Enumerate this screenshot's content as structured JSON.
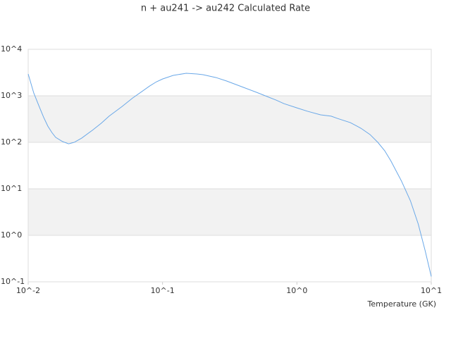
{
  "chart_data": {
    "type": "line",
    "title": "n + au241 -> au242 Calculated Rate",
    "x_label": "Temperature (GK)",
    "log_x": true,
    "log_y": true,
    "grid": true,
    "bands": true,
    "xlim": [
      0.01,
      10
    ],
    "ylim": [
      0.1,
      10000
    ],
    "xticks": [
      {
        "value": 0.01,
        "label": "10^-2"
      },
      {
        "value": 0.1,
        "label": "10^-1"
      },
      {
        "value": 1,
        "label": "10^0"
      },
      {
        "value": 10,
        "label": "10^1"
      }
    ],
    "yticks": [
      {
        "value": 0.1,
        "label": "10^-1"
      },
      {
        "value": 1,
        "label": "10^0"
      },
      {
        "value": 10,
        "label": "10^1"
      },
      {
        "value": 100,
        "label": "10^2"
      },
      {
        "value": 1000,
        "label": "10^3"
      },
      {
        "value": 10000,
        "label": "10^4"
      }
    ],
    "x": [
      0.01,
      0.011,
      0.012,
      0.013,
      0.014,
      0.015,
      0.016,
      0.018,
      0.02,
      0.022,
      0.025,
      0.03,
      0.035,
      0.04,
      0.05,
      0.06,
      0.07,
      0.08,
      0.09,
      0.1,
      0.12,
      0.15,
      0.18,
      0.2,
      0.25,
      0.3,
      0.4,
      0.5,
      0.6,
      0.7,
      0.8,
      1,
      1.2,
      1.5,
      1.8,
      2,
      2.5,
      3,
      3.5,
      4,
      4.5,
      5,
      6,
      7,
      8,
      9,
      10
    ],
    "series": [
      {
        "color": "#6aa8e8",
        "values": [
          2950,
          1150,
          615,
          350,
          223,
          163,
          128,
          104,
          93,
          100,
          123,
          181,
          258,
          365,
          590,
          900,
          1230,
          1620,
          2000,
          2300,
          2750,
          3050,
          2950,
          2850,
          2470,
          2080,
          1520,
          1190,
          965,
          810,
          680,
          550,
          465,
          390,
          365,
          327,
          265,
          200,
          147,
          100,
          66,
          40,
          14.7,
          5.5,
          1.75,
          0.47,
          0.13
        ]
      }
    ]
  }
}
